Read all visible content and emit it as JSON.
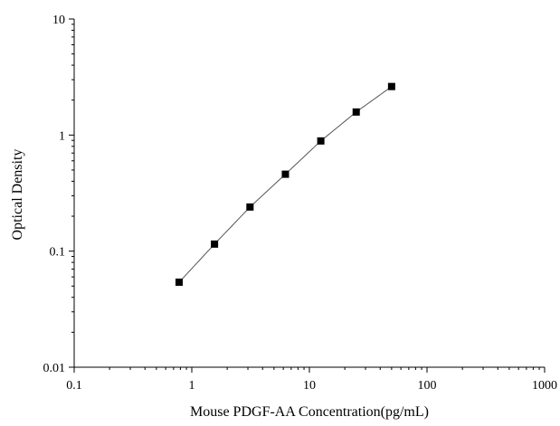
{
  "chart_data": {
    "type": "scatter",
    "title": "",
    "xlabel": "Mouse PDGF-AA Concentration(pg/mL)",
    "ylabel": "Optical Density",
    "x_scale": "log",
    "y_scale": "log",
    "xlim": [
      0.1,
      1000
    ],
    "ylim": [
      0.01,
      10
    ],
    "x_ticks": [
      {
        "value": 0.1,
        "label": "0.1"
      },
      {
        "value": 1,
        "label": "1"
      },
      {
        "value": 10,
        "label": "10"
      },
      {
        "value": 100,
        "label": "100"
      },
      {
        "value": 1000,
        "label": "1000"
      }
    ],
    "y_ticks": [
      {
        "value": 0.01,
        "label": "0.01"
      },
      {
        "value": 0.1,
        "label": "0.1"
      },
      {
        "value": 1,
        "label": "1"
      },
      {
        "value": 10,
        "label": "10"
      }
    ],
    "grid": false,
    "legend": "none",
    "series": [
      {
        "marker": "square",
        "fit_line": true,
        "points": [
          {
            "x": 0.78,
            "y": 0.054
          },
          {
            "x": 1.56,
            "y": 0.115
          },
          {
            "x": 3.125,
            "y": 0.24
          },
          {
            "x": 6.25,
            "y": 0.46
          },
          {
            "x": 12.5,
            "y": 0.89
          },
          {
            "x": 25,
            "y": 1.58
          },
          {
            "x": 50,
            "y": 2.62
          }
        ]
      }
    ],
    "colors": {
      "marker": "#000000",
      "line": "#555555",
      "axis": "#000000"
    }
  }
}
